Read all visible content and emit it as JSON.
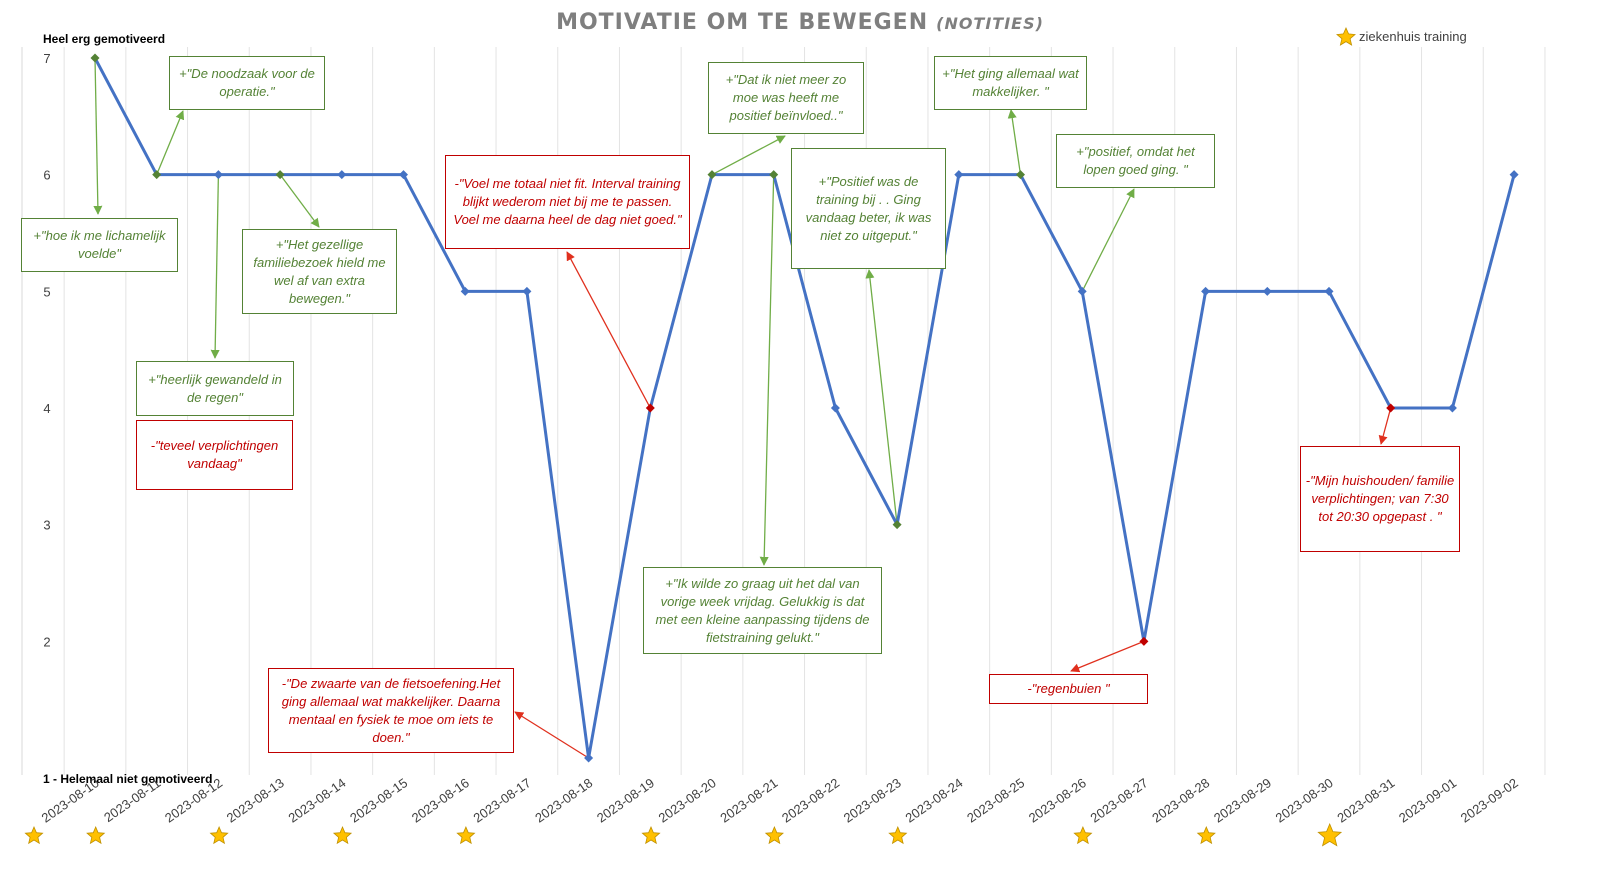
{
  "chart_data": {
    "type": "line",
    "title": "MOTIVATIE OM TE BEWEGEN",
    "subtitle": "(NOTITIES)",
    "ylabel_top": "Heel erg gemotiveerd",
    "ylabel_bottom": "1 - Helemaal niet gemotiveerd",
    "ylim": [
      1,
      7
    ],
    "yticks": [
      "2",
      "3",
      "4",
      "5",
      "6",
      "7"
    ],
    "grid": "vertical",
    "legend": {
      "label": "ziekenhuis training",
      "placement": "top-right"
    },
    "series_color": "#4472c4",
    "x": [
      "2023-08-10",
      "2023-08-11",
      "2023-08-12",
      "2023-08-13",
      "2023-08-14",
      "2023-08-15",
      "2023-08-16",
      "2023-08-17",
      "2023-08-18",
      "2023-08-19",
      "2023-08-20",
      "2023-08-21",
      "2023-08-22",
      "2023-08-23",
      "2023-08-24",
      "2023-08-25",
      "2023-08-26",
      "2023-08-27",
      "2023-08-28",
      "2023-08-29",
      "2023-08-30",
      "2023-08-31",
      "2023-09-01",
      "2023-09-02"
    ],
    "series": [
      {
        "values": [
          7,
          6,
          6,
          6,
          6,
          6,
          5,
          5,
          1,
          4,
          6,
          6,
          4,
          3,
          6,
          6,
          5,
          2,
          5,
          5,
          5,
          4,
          4,
          6
        ]
      }
    ],
    "marker_colors": [
      "#548235",
      "#548235",
      "#4472c4",
      "#548235",
      "#4472c4",
      "#4472c4",
      "#4472c4",
      "#4472c4",
      "#4472c4",
      "#c00000",
      "#548235",
      "#548235",
      "#4472c4",
      "#548235",
      "#4472c4",
      "#548235",
      "#4472c4",
      "#c00000",
      "#4472c4",
      "#4472c4",
      "#4472c4",
      "#c00000",
      "#4472c4",
      "#4472c4"
    ],
    "training_dates": [
      "2023-08-10",
      "2023-08-11",
      "2023-08-13",
      "2023-08-15",
      "2023-08-17",
      "2023-08-20",
      "2023-08-22",
      "2023-08-24",
      "2023-08-27",
      "2023-08-29",
      "2023-08-31"
    ],
    "annotations": [
      {
        "date": "2023-08-10",
        "sign": "+",
        "text": "+\"hoe ik me lichamelijk voelde\""
      },
      {
        "date": "2023-08-11",
        "sign": "+",
        "text": "+\"De noodzaak voor de operatie.\""
      },
      {
        "date": "2023-08-12",
        "sign": "+",
        "text": "+\"heerlijk gewandeld in de regen\""
      },
      {
        "date": "2023-08-12",
        "sign": "-",
        "text": "-\"teveel verplichtingen vandaag\""
      },
      {
        "date": "2023-08-13",
        "sign": "+",
        "text": "+\"Het gezellige familiebezoek hield me wel af van extra bewegen.\""
      },
      {
        "date": "2023-08-18",
        "sign": "-",
        "text": "-\"De zwaarte van de fietsoefening.Het ging allemaal wat makkelijker. Daarna mentaal en fysiek te moe om iets te doen.\""
      },
      {
        "date": "2023-08-19",
        "sign": "-",
        "text": "-\"Voel me totaal niet fit. Interval training blijkt wederom niet bij me te passen. Voel me daarna heel de dag niet goed.\""
      },
      {
        "date": "2023-08-20",
        "sign": "+",
        "text": "+\"Dat ik niet meer zo moe was heeft me positief beïnvloed..\""
      },
      {
        "date": "2023-08-21",
        "sign": "+",
        "text": "+\"Ik wilde zo graag uit het dal van vorige week vrijdag. Gelukkig is dat met een kleine aanpassing tijdens de fietstraining gelukt.\""
      },
      {
        "date": "2023-08-23",
        "sign": "+",
        "text": "+\"Positief was de training bij . . Ging vandaag beter, ik was niet zo uitgeput.\""
      },
      {
        "date": "2023-08-25",
        "sign": "+",
        "text": "+\"Het ging allemaal wat makkelijker. \""
      },
      {
        "date": "2023-08-26",
        "sign": "+",
        "text": "+\"positief, omdat het lopen goed ging. \""
      },
      {
        "date": "2023-08-27",
        "sign": "-",
        "text": "-\"regenbuien \""
      },
      {
        "date": "2023-08-31",
        "sign": "-",
        "text": "-\"Mijn huishouden/ familie verplichtingen; van 7:30 tot 20:30 opgepast . \""
      }
    ]
  }
}
